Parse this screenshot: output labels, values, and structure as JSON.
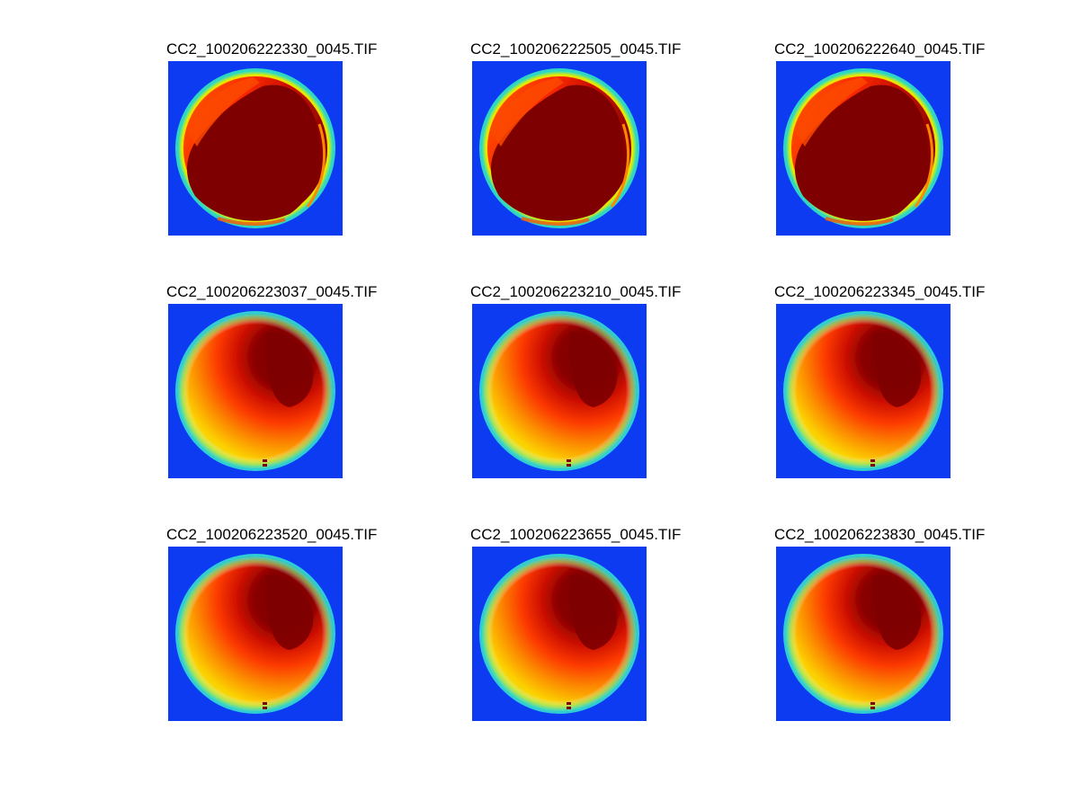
{
  "figure": {
    "panels": [
      {
        "title": "CC2_100206222330_0045.TIF",
        "type": "saturated"
      },
      {
        "title": "CC2_100206222505_0045.TIF",
        "type": "saturated"
      },
      {
        "title": "CC2_100206222640_0045.TIF",
        "type": "saturated"
      },
      {
        "title": "CC2_100206223037_0045.TIF",
        "type": "gradient"
      },
      {
        "title": "CC2_100206223210_0045.TIF",
        "type": "gradient"
      },
      {
        "title": "CC2_100206223345_0045.TIF",
        "type": "gradient"
      },
      {
        "title": "CC2_100206223520_0045.TIF",
        "type": "gradient"
      },
      {
        "title": "CC2_100206223655_0045.TIF",
        "type": "gradient"
      },
      {
        "title": "CC2_100206223830_0045.TIF",
        "type": "gradient"
      }
    ],
    "colors": {
      "background": "#0d3cf5",
      "dark_red": "#800000",
      "red": "#ff2000",
      "orange": "#ff8a00",
      "yellow": "#f5f500",
      "cyan": "#20d8c8"
    }
  }
}
